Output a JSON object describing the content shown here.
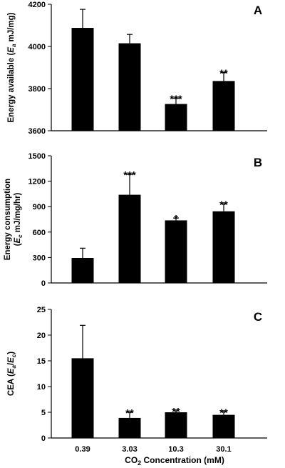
{
  "chart_data": [
    {
      "type": "bar",
      "panel": "A",
      "categories": [
        "0.39",
        "3.03",
        "10.3",
        "30.1"
      ],
      "values": [
        4088,
        4015,
        3727,
        3836
      ],
      "errors": [
        88,
        42,
        28,
        40
      ],
      "significance": [
        "",
        "",
        "***",
        "**"
      ],
      "ylim": [
        3600,
        4200
      ],
      "yticks": [
        3600,
        3800,
        4000,
        4200
      ],
      "ylabel_parts": [
        {
          "t": "Energy available (",
          "i": false
        },
        {
          "t": "E",
          "i": true
        },
        {
          "t": "a",
          "i": true,
          "sub": true
        },
        {
          "t": " mJ/mg)",
          "i": false
        }
      ],
      "show_xticklabels": false
    },
    {
      "type": "bar",
      "panel": "B",
      "categories": [
        "0.39",
        "3.03",
        "10.3",
        "30.1"
      ],
      "values": [
        295,
        1040,
        738,
        845
      ],
      "errors": [
        115,
        240,
        28,
        88
      ],
      "significance": [
        "",
        "***",
        "*",
        "**"
      ],
      "ylim": [
        0,
        1500
      ],
      "yticks": [
        0,
        300,
        600,
        900,
        1200,
        1500
      ],
      "ylabel_lines": [
        [
          {
            "t": "Energy consumption",
            "i": false
          }
        ],
        [
          {
            "t": "(",
            "i": false
          },
          {
            "t": "E",
            "i": true
          },
          {
            "t": "c",
            "i": true,
            "sub": true
          },
          {
            "t": " mJ/mg/hr)",
            "i": false
          }
        ]
      ],
      "show_xticklabels": false
    },
    {
      "type": "bar",
      "panel": "C",
      "categories": [
        "0.39",
        "3.03",
        "10.3",
        "30.1"
      ],
      "values": [
        15.5,
        3.9,
        5.0,
        4.5
      ],
      "errors": [
        6.4,
        1.1,
        0.3,
        0.6
      ],
      "significance": [
        "",
        "**",
        "**",
        "**"
      ],
      "ylim": [
        0,
        25
      ],
      "yticks": [
        0,
        5,
        10,
        15,
        20,
        25
      ],
      "ylabel_parts": [
        {
          "t": "CEA (",
          "i": false
        },
        {
          "t": "E",
          "i": true
        },
        {
          "t": "a",
          "i": true,
          "sub": true
        },
        {
          "t": "/",
          "i": false
        },
        {
          "t": "E",
          "i": true
        },
        {
          "t": "c",
          "i": true,
          "sub": true
        },
        {
          "t": ")",
          "i": false
        }
      ],
      "show_xticklabels": true,
      "xlabel_parts": [
        {
          "t": "CO",
          "i": false
        },
        {
          "t": "2",
          "i": false,
          "sub": true
        },
        {
          "t": " Concentration (mM)",
          "i": false
        }
      ]
    }
  ]
}
